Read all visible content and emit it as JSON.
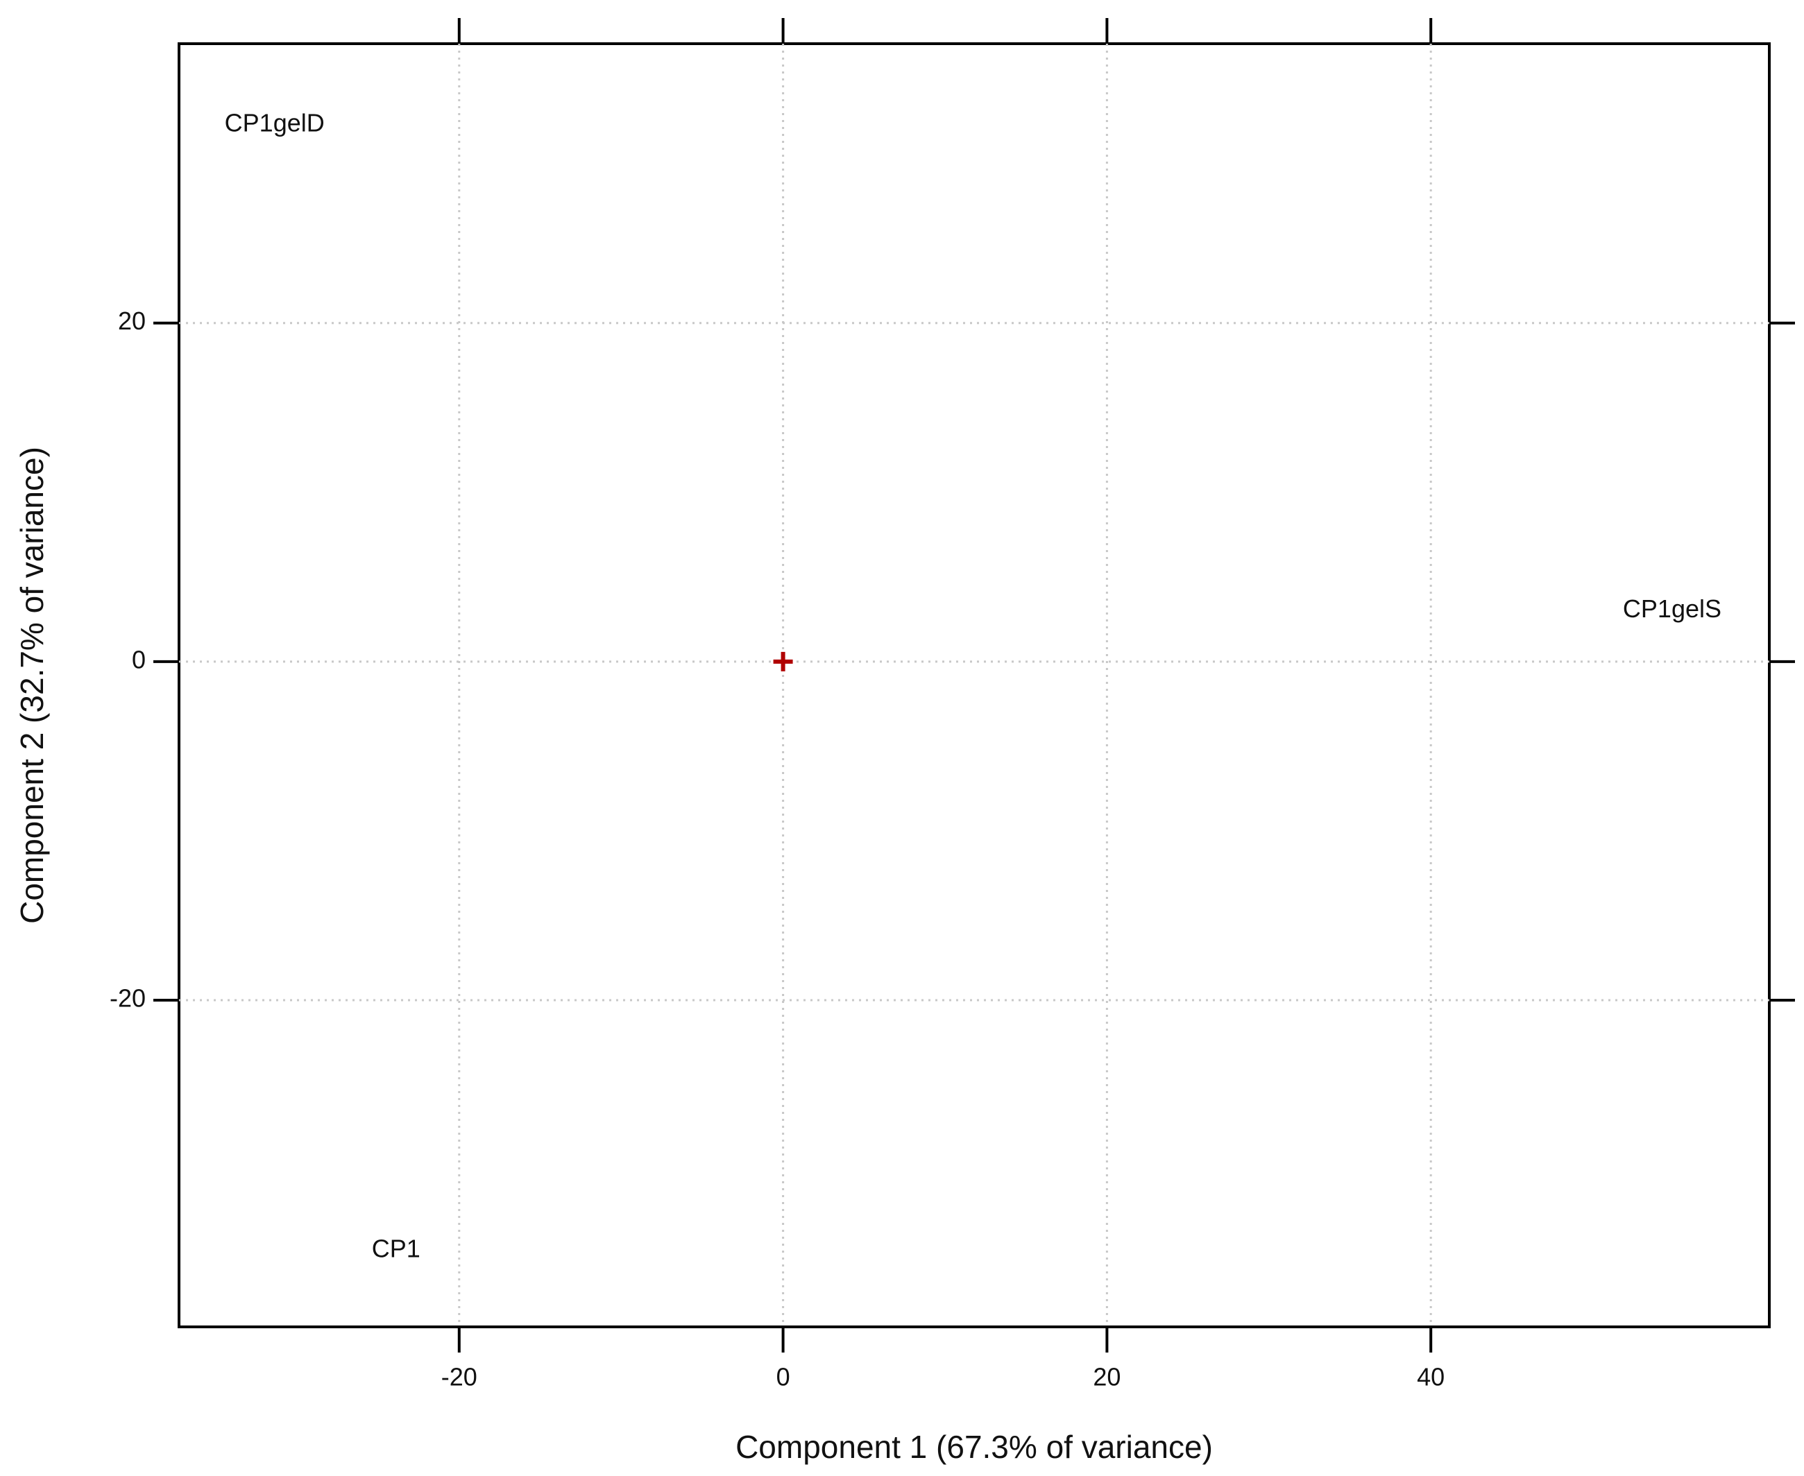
{
  "chart_data": {
    "type": "scatter",
    "xlabel": "Component 1 (67.3% of variance)",
    "ylabel": "Component 2 (32.7% of variance)",
    "labels": [
      "CP1gelD",
      "CP1gelS",
      "CP1"
    ],
    "x": [
      -31.4,
      54.9,
      -23.9
    ],
    "values": [
      31.7,
      3.0,
      -34.8
    ],
    "center": {
      "x": 0,
      "y": 0,
      "color": "#b00000"
    },
    "xlim": [
      -37.3,
      60.9
    ],
    "ylim": [
      -39.3,
      36.5
    ],
    "xticks": [
      -20,
      0,
      20,
      40
    ],
    "yticks": [
      -20,
      0,
      20
    ],
    "grid": true
  }
}
